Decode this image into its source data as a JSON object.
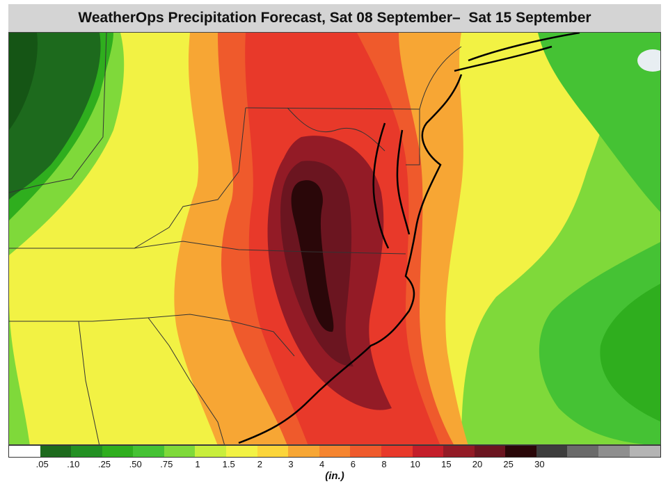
{
  "title": "WeatherOps Precipitation Forecast, Sat 08 September–  Sat 15 September",
  "legend": {
    "units": "(in.)",
    "swatches": [
      "#ffffff",
      "#1d6a1d",
      "#239023",
      "#2fae1e",
      "#45c234",
      "#7fd93a",
      "#c8ee3c",
      "#f2f244",
      "#fbd53a",
      "#f7a634",
      "#f5842f",
      "#ef5a2c",
      "#e8392a",
      "#c41e2a",
      "#931b26",
      "#6b1520",
      "#2a0709",
      "#3d3d3d",
      "#6a6a6a",
      "#8e8e8e",
      "#b4b4b4"
    ],
    "tick_labels": [
      ".05",
      ".10",
      ".25",
      ".50",
      ".75",
      "1",
      "1.5",
      "2",
      "3",
      "4",
      "6",
      "8",
      "10",
      "15",
      "20",
      "25",
      "30"
    ]
  },
  "colors": {
    "dark_green": "#1d6a1d",
    "green": "#2fae1e",
    "light_green": "#7fd93a",
    "yellow": "#f2f244",
    "orange": "#f7a634",
    "red_orange": "#ef5a2c",
    "red": "#e8392a",
    "dark_red": "#931b26",
    "maroon": "#6b1520",
    "near_black": "#2a0709"
  }
}
